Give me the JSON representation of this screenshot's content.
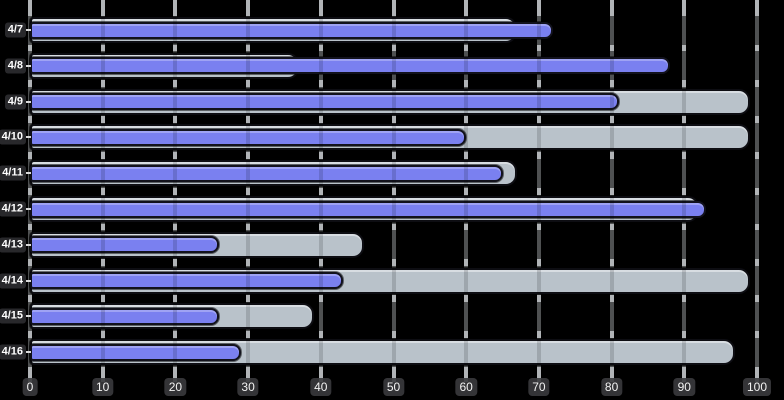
{
  "chart_data": {
    "type": "bar",
    "orientation": "horizontal",
    "title": "",
    "xlabel": "",
    "ylabel": "",
    "categories": [
      "4/7",
      "4/8",
      "4/9",
      "4/10",
      "4/11",
      "4/12",
      "4/13",
      "4/14",
      "4/15",
      "4/16"
    ],
    "series": [
      {
        "name": "gray",
        "color": "#b9c2ca",
        "values": [
          67,
          37,
          99,
          99,
          67,
          92,
          46,
          99,
          39,
          97
        ]
      },
      {
        "name": "blue",
        "color": "#7a80f0",
        "values": [
          72,
          88,
          81,
          60,
          65,
          93,
          26,
          43,
          26,
          29
        ]
      }
    ],
    "xlim": [
      0,
      100
    ],
    "x_ticks": [
      0,
      10,
      20,
      30,
      40,
      50,
      60,
      70,
      80,
      90,
      100
    ],
    "grid": true,
    "legend": false
  },
  "colors": {
    "background": "#000000",
    "gridline": "#ced2d6",
    "bar_gray": "#b9c2ca",
    "bar_blue": "#7a80f0",
    "tick_badge": "#38383c",
    "tick_text": "#f2f2f2"
  }
}
